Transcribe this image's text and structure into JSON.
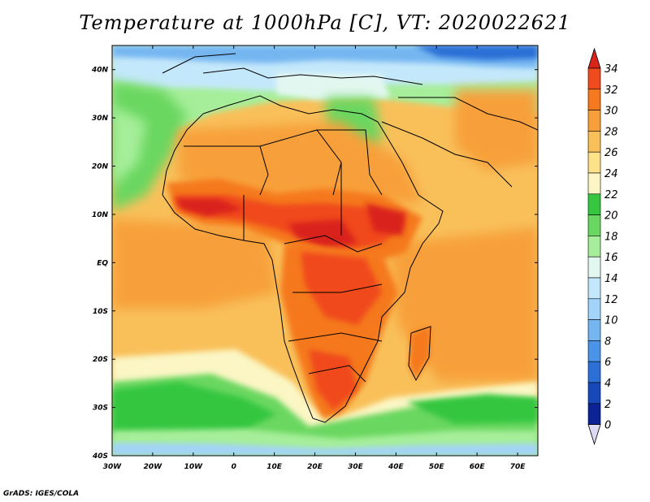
{
  "title": "Temperature at 1000hPa [C], VT: 2020022621",
  "credit": "GrADS: IGES/COLA",
  "map": {
    "variable": "Temperature at 1000hPa",
    "units": "C",
    "valid_time": "2020022621",
    "lon_range": [
      -30,
      75
    ],
    "lat_range": [
      -40,
      45
    ],
    "x_ticks": [
      "30W",
      "20W",
      "10W",
      "0",
      "10E",
      "20E",
      "30E",
      "40E",
      "50E",
      "60E",
      "70E"
    ],
    "y_ticks": [
      "40N",
      "30N",
      "20N",
      "10N",
      "EQ",
      "10S",
      "20S",
      "30S",
      "40S"
    ]
  },
  "colorbar": {
    "levels": [
      "34",
      "32",
      "30",
      "28",
      "26",
      "24",
      "22",
      "20",
      "18",
      "16",
      "14",
      "12",
      "10",
      "8",
      "6",
      "4",
      "2",
      "0"
    ],
    "colors": [
      "#d9241c",
      "#f04a1f",
      "#f5791e",
      "#f7a03b",
      "#f9c05a",
      "#fde28a",
      "#fbf6c4",
      "#36c63f",
      "#6ad760",
      "#a6ee9a",
      "#e3f7f1",
      "#c4e8fb",
      "#a3d3f8",
      "#75b6f1",
      "#4a93e6",
      "#2c6fd6",
      "#1747b9",
      "#0b2395",
      "#121a6a"
    ],
    "top_triangle": "#d9241c",
    "bottom_triangle": "#ddd9f4"
  }
}
